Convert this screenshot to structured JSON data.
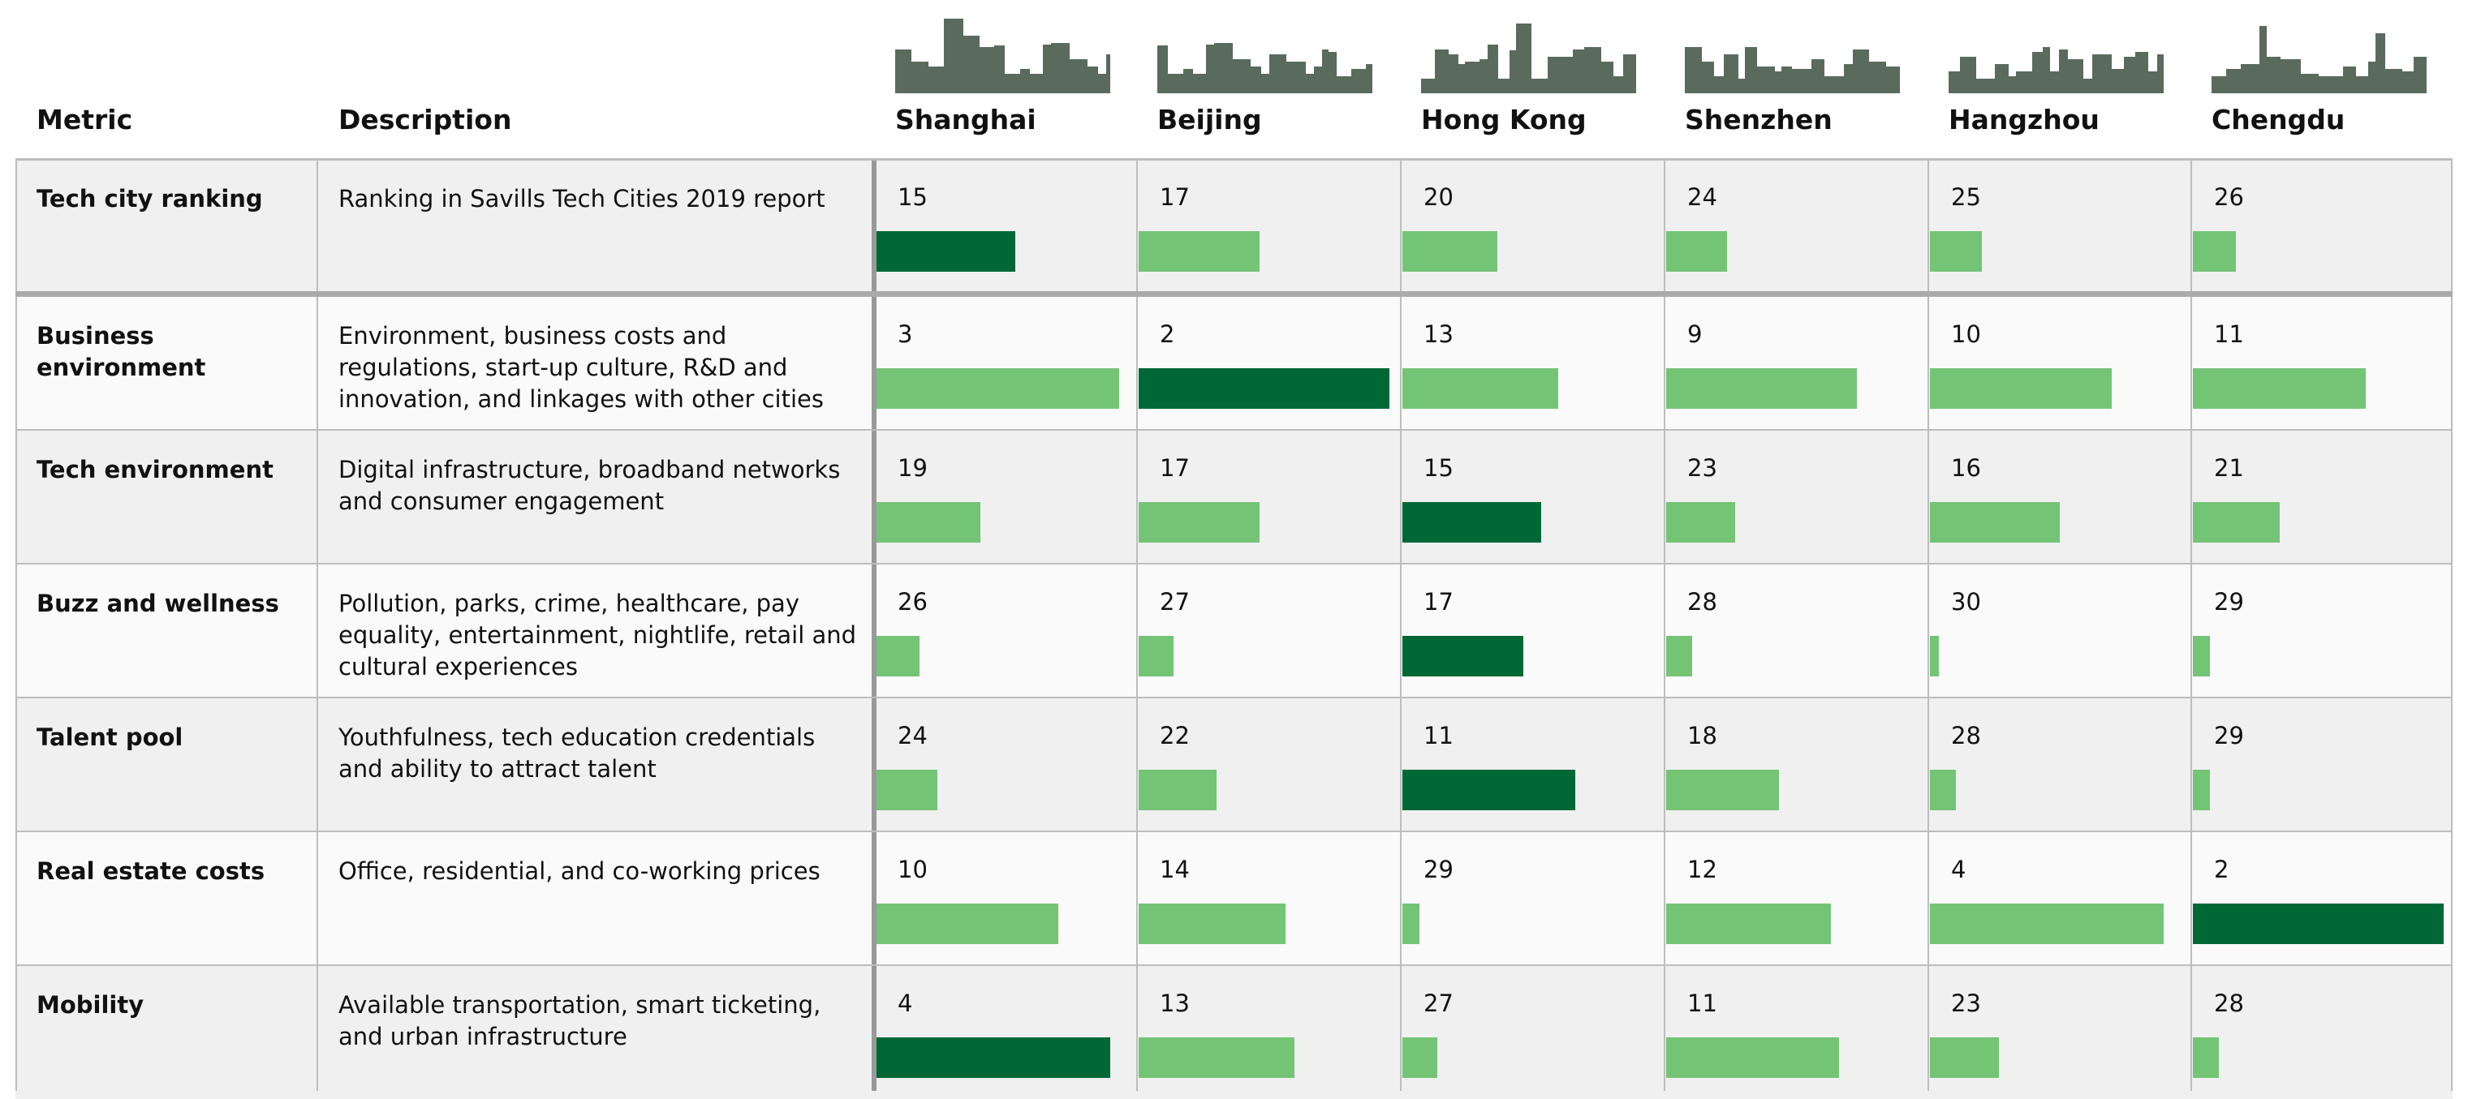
{
  "header": {
    "metric": "Metric",
    "description": "Description",
    "cities": [
      "Shanghai",
      "Beijing",
      "Hong Kong",
      "Shenzhen",
      "Hangzhou",
      "Chengdu"
    ]
  },
  "table": {
    "rows": [
      {
        "metric": "Tech city ranking",
        "description": "Ranking in Savills Tech Cities 2019 report",
        "ranks": [
          15,
          17,
          20,
          24,
          25,
          26
        ]
      },
      {
        "metric": "Business environment",
        "description": "Environment, business costs and regulations, start-up culture, R&D and innovation, and linkages with other cities",
        "ranks": [
          3,
          2,
          13,
          9,
          10,
          11
        ]
      },
      {
        "metric": "Tech environment",
        "description": "Digital infrastructure, broadband networks and consumer engagement",
        "ranks": [
          19,
          17,
          15,
          23,
          16,
          21
        ]
      },
      {
        "metric": "Buzz and wellness",
        "description": "Pollution, parks, crime, healthcare, pay equality, entertainment, nightlife, retail and cultural experiences",
        "ranks": [
          26,
          27,
          17,
          28,
          30,
          29
        ]
      },
      {
        "metric": "Talent pool",
        "description": "Youthfulness, tech education credentials and ability to attract talent",
        "ranks": [
          24,
          22,
          11,
          18,
          28,
          29
        ]
      },
      {
        "metric": "Real estate costs",
        "description": "Office, residential, and co-working prices",
        "ranks": [
          10,
          14,
          29,
          12,
          4,
          2
        ]
      },
      {
        "metric": "Mobility",
        "description": "Available transportation, smart ticketing, and urban infrastructure",
        "ranks": [
          4,
          13,
          27,
          11,
          23,
          28
        ]
      }
    ]
  },
  "bars": {
    "xlim": [
      31,
      1
    ],
    "color": "#74c476",
    "highlight_color": "#006837"
  }
}
